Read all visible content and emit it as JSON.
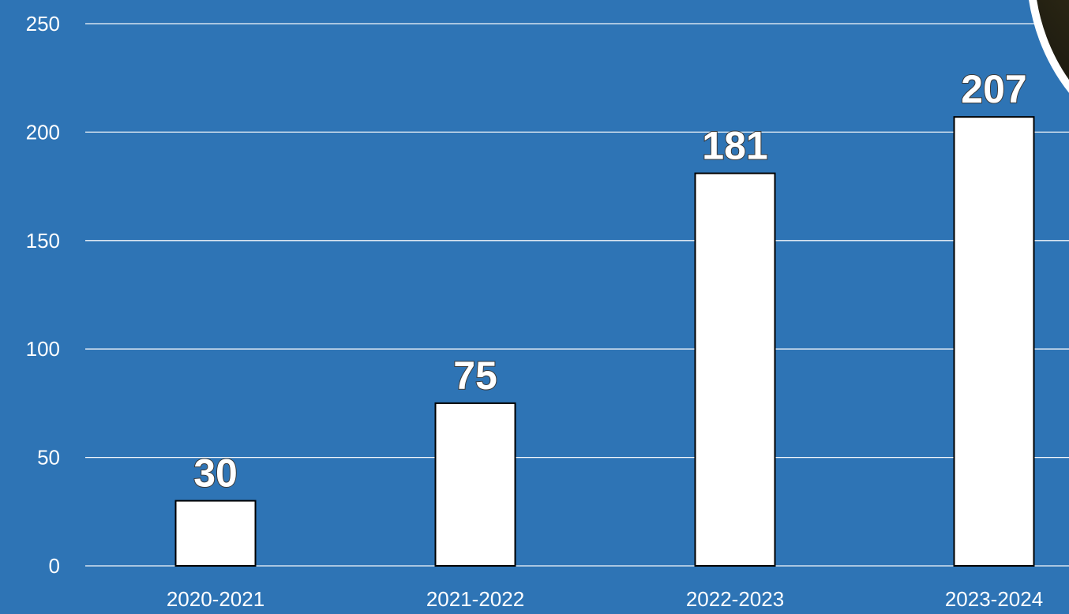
{
  "chart_data": {
    "type": "bar",
    "categories": [
      "2020-2021",
      "2021-2022",
      "2022-2023",
      "2023-2024"
    ],
    "values": [
      30,
      75,
      181,
      207
    ],
    "data_labels": [
      "30",
      "75",
      "181",
      "207"
    ],
    "y_ticks": [
      "0",
      "50",
      "100",
      "150",
      "200",
      "250"
    ],
    "ylim": [
      0,
      250
    ],
    "grid": true,
    "title": "",
    "xlabel": "",
    "ylabel": "",
    "colors": {
      "background": "#2e74b5",
      "bar_fill": "#ffffff",
      "bar_outline": "#000000",
      "gridline": "#ffffff",
      "text": "#ffffff"
    }
  }
}
